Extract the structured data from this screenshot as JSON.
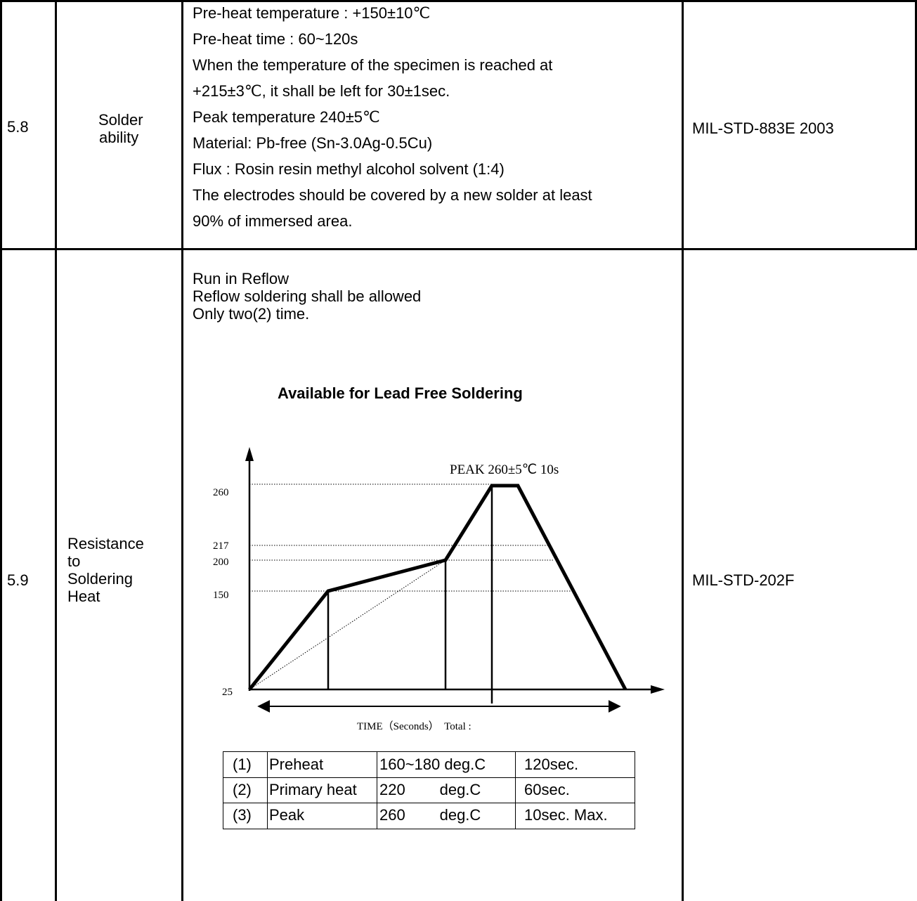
{
  "rows": [
    {
      "no": "5.8",
      "item": [
        "Solder",
        "ability"
      ],
      "condition": [
        "Pre-heat temperature : +150±10℃",
        "Pre-heat time : 60~120s",
        "When the temperature of the specimen is reached at",
        "+215±3℃, it shall be left for 30±1sec.",
        "Peak temperature 240±5℃",
        "Material: Pb-free (Sn-3.0Ag-0.5Cu)",
        "Flux : Rosin resin methyl alcohol solvent (1:4)",
        "The electrodes should be covered by a new solder at least",
        "90% of immersed area."
      ],
      "standard": "MIL-STD-883E 2003"
    },
    {
      "no": "5.9",
      "item": [
        "Resistance",
        "to",
        "Soldering",
        "Heat"
      ],
      "condition": [
        "Run in Reflow",
        "Reflow soldering shall be allowed",
        "Only two(2) time."
      ],
      "standard": "MIL-STD-202F"
    }
  ],
  "profile_title": "Available for Lead Free Soldering",
  "chart_data": {
    "type": "line",
    "title": "Available for Lead Free Soldering",
    "annotation": "PEAK 260±5℃ 10s",
    "xlabel": "TIME（Seconds）  Total :",
    "y_ticks": [
      "260",
      "217",
      "200",
      "150",
      "25"
    ],
    "series": [
      {
        "points": [
          [
            0,
            25
          ],
          [
            1,
            150
          ],
          [
            2.5,
            200
          ],
          [
            3.1,
            260
          ],
          [
            3.45,
            260
          ],
          [
            4.9,
            25
          ]
        ]
      }
    ]
  },
  "profile_table": {
    "rows": [
      [
        "(1)",
        "Preheat",
        "160~180 deg.C",
        "120sec."
      ],
      [
        "(2)",
        "Primary heat",
        "220        deg.C",
        "60sec."
      ],
      [
        "(3)",
        "Peak",
        "260        deg.C",
        "10sec. Max."
      ]
    ]
  }
}
